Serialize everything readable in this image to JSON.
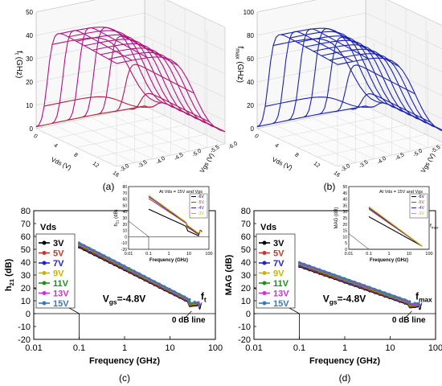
{
  "chart_data": [
    {
      "id": "a",
      "type": "surface3d",
      "panel_label": "(a)",
      "zlabel": "ft (GHz)",
      "xlabel": "Vds (V)",
      "ylabel": "Vgs (V)",
      "zticks": [
        "0",
        "10",
        "20",
        "30",
        "40",
        "50"
      ],
      "xticks": [
        "0",
        "4",
        "8",
        "12",
        "16"
      ],
      "yticks": [
        "-6.0",
        "-5.5",
        "-5.0",
        "-4.5",
        "-4.0",
        "-3.5",
        "-3.0"
      ],
      "xlim": [
        0,
        16
      ],
      "ylim": [
        -6.0,
        -3.0
      ],
      "zlim": [
        0,
        50
      ],
      "peak_z": 47,
      "color_low": "#b0202a",
      "color_high": "#b1108a"
    },
    {
      "id": "b",
      "type": "surface3d",
      "panel_label": "(b)",
      "zlabel": "fmax (GHz)",
      "xlabel": "Vds (V)",
      "ylabel": "Vgs (V)",
      "zticks": [
        "0",
        "20",
        "40",
        "60",
        "80",
        "100"
      ],
      "xticks": [
        "0",
        "4",
        "8",
        "12",
        "16"
      ],
      "yticks": [
        "-6.0",
        "-5.5",
        "-5.0",
        "-4.5",
        "-4.0",
        "-3.5",
        "-3.0"
      ],
      "xlim": [
        0,
        16
      ],
      "ylim": [
        -6.0,
        -3.0
      ],
      "zlim": [
        0,
        100
      ],
      "peak_z": 93,
      "color": "#1a22b0"
    },
    {
      "id": "c",
      "type": "line",
      "panel_label": "(c)",
      "xlabel": "Frequency (GHz)",
      "ylabel": "h21 (dB)",
      "xscale": "log",
      "xlim": [
        0.01,
        100
      ],
      "ylim": [
        -20,
        80
      ],
      "xticks": [
        "0.01",
        "0.1",
        "1",
        "10",
        "100"
      ],
      "yticks": [
        "-20",
        "-10",
        "0",
        "10",
        "20",
        "30",
        "40",
        "50",
        "60",
        "70",
        "80"
      ],
      "legend_title": "Vds",
      "annotation": "Vgs=-4.8V",
      "f_label": "ft",
      "zero_line_label": "0 dB line",
      "series": [
        {
          "name": "3V",
          "color": "#000000",
          "y01": 51.5,
          "y40": 5.5
        },
        {
          "name": "5V",
          "color": "#c0392b",
          "y01": 52.3,
          "y40": 6.0
        },
        {
          "name": "7V",
          "color": "#2222cc",
          "y01": 53.0,
          "y40": 6.5
        },
        {
          "name": "9V",
          "color": "#c8b400",
          "y01": 53.6,
          "y40": 7.0
        },
        {
          "name": "11V",
          "color": "#1f8f1f",
          "y01": 54.2,
          "y40": 7.4
        },
        {
          "name": "13V",
          "color": "#cc33cc",
          "y01": 54.7,
          "y40": 7.8
        },
        {
          "name": "15V",
          "color": "#3b78b6",
          "y01": 55.2,
          "y40": 8.2
        }
      ],
      "inset": {
        "ylabel": "h21 (dB)",
        "xlabel": "Frequency (GHz)",
        "title": "At Vds = 15V and Vgs",
        "xticks": [
          "0.01",
          "0.1",
          "1",
          "10",
          "100"
        ],
        "yticks": [
          "-20",
          "-10",
          "0",
          "10",
          "20",
          "30",
          "40",
          "50",
          "60",
          "70",
          "80"
        ],
        "series": [
          {
            "name": "-6V",
            "color": "#000000",
            "y01": 44
          },
          {
            "name": "-5V",
            "color": "#c0392b",
            "y01": 61
          },
          {
            "name": "-4V",
            "color": "#2222cc",
            "y01": 64
          },
          {
            "name": "-3V",
            "color": "#c8b400",
            "y01": 66
          }
        ]
      }
    },
    {
      "id": "d",
      "type": "line",
      "panel_label": "(d)",
      "xlabel": "Frequency (GHz)",
      "ylabel": "MAG (dB)",
      "xscale": "log",
      "xlim": [
        0.01,
        100
      ],
      "ylim": [
        -20,
        80
      ],
      "xticks": [
        "0.01",
        "0.1",
        "1",
        "10",
        "100"
      ],
      "yticks": [
        "-20",
        "-10",
        "0",
        "10",
        "20",
        "30",
        "40",
        "50",
        "60",
        "70",
        "80"
      ],
      "legend_title": "Vds",
      "annotation": "Vgs=-4.8V",
      "f_label": "fmax",
      "zero_line_label": "0 dB line",
      "series": [
        {
          "name": "3V",
          "color": "#000000",
          "y01": 36.5,
          "y40": 4.5
        },
        {
          "name": "5V",
          "color": "#c0392b",
          "y01": 37.2,
          "y40": 5.0
        },
        {
          "name": "7V",
          "color": "#2222cc",
          "y01": 37.9,
          "y40": 5.5
        },
        {
          "name": "9V",
          "color": "#c8b400",
          "y01": 38.5,
          "y40": 6.0
        },
        {
          "name": "11V",
          "color": "#1f8f1f",
          "y01": 39.0,
          "y40": 6.5
        },
        {
          "name": "13V",
          "color": "#cc33cc",
          "y01": 39.5,
          "y40": 7.0
        },
        {
          "name": "15V",
          "color": "#3b78b6",
          "y01": 40.0,
          "y40": 7.5
        }
      ],
      "inset": {
        "ylabel": "MAG (dB)",
        "xlabel": "Frequency (GHz)",
        "title": "At Vds = 15V and Vgs",
        "f_label": "fmax",
        "xticks": [
          "0.01",
          "0.1",
          "1",
          "10",
          "100"
        ],
        "yticks": [
          "0",
          "5",
          "10",
          "15",
          "20",
          "25",
          "30",
          "35",
          "40",
          "45",
          "50"
        ],
        "series": [
          {
            "name": "-6V",
            "color": "#000000",
            "y01": 26
          },
          {
            "name": "-5V",
            "color": "#c0392b",
            "y01": 32
          },
          {
            "name": "-4V",
            "color": "#2222cc",
            "y01": 33
          },
          {
            "name": "-3V",
            "color": "#c8b400",
            "y01": 34
          }
        ]
      }
    }
  ]
}
